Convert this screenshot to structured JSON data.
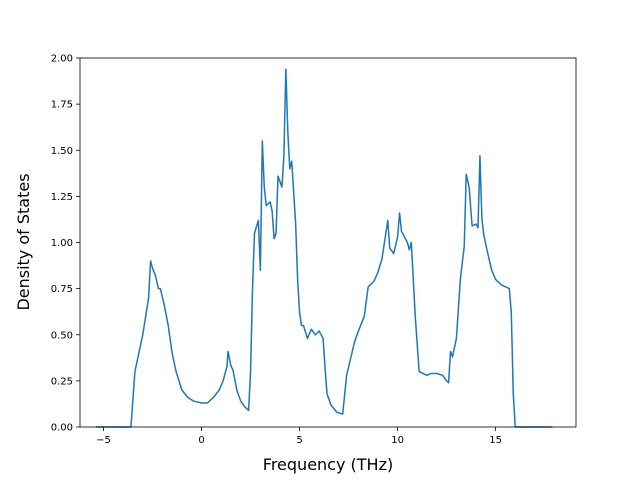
{
  "chart_data": {
    "type": "line",
    "title": "",
    "xlabel": "Frequency (THz)",
    "ylabel": "Density of States",
    "xlim": [
      -6.2,
      19.1
    ],
    "ylim": [
      0.0,
      2.0
    ],
    "grid": false,
    "line_color": "#1f77b4",
    "x_ticks": [
      -5,
      0,
      5,
      10,
      15
    ],
    "x_tick_labels": [
      "−5",
      "0",
      "5",
      "10",
      "15"
    ],
    "y_ticks": [
      0.0,
      0.25,
      0.5,
      0.75,
      1.0,
      1.25,
      1.5,
      1.75,
      2.0
    ],
    "y_tick_labels": [
      "0.00",
      "0.25",
      "0.50",
      "0.75",
      "1.00",
      "1.25",
      "1.50",
      "1.75",
      "2.00"
    ],
    "series": [
      {
        "x": [
          -5.4,
          -3.6,
          -3.4,
          -3.0,
          -2.7,
          -2.6,
          -2.5,
          -2.35,
          -2.2,
          -2.1,
          -1.9,
          -1.7,
          -1.5,
          -1.3,
          -1.0,
          -0.7,
          -0.4,
          0.0,
          0.3,
          0.6,
          0.9,
          1.1,
          1.3,
          1.35,
          1.5,
          1.6,
          1.8,
          2.0,
          2.2,
          2.4,
          2.5,
          2.6,
          2.7,
          2.9,
          3.0,
          3.1,
          3.2,
          3.3,
          3.5,
          3.6,
          3.7,
          3.8,
          3.9,
          4.1,
          4.2,
          4.3,
          4.4,
          4.5,
          4.6,
          4.7,
          4.8,
          4.9,
          5.0,
          5.1,
          5.2,
          5.4,
          5.6,
          5.8,
          6.0,
          6.2,
          6.3,
          6.4,
          6.6,
          6.9,
          7.2,
          7.4,
          7.6,
          7.8,
          8.0,
          8.3,
          8.5,
          8.8,
          9.0,
          9.2,
          9.5,
          9.6,
          9.8,
          10.0,
          10.1,
          10.2,
          10.5,
          10.6,
          10.7,
          10.9,
          11.1,
          11.5,
          11.7,
          12.0,
          12.3,
          12.5,
          12.6,
          12.7,
          12.8,
          13.0,
          13.2,
          13.4,
          13.5,
          13.65,
          13.8,
          14.0,
          14.1,
          14.2,
          14.3,
          14.4,
          14.6,
          14.8,
          15.0,
          15.3,
          15.7,
          15.8,
          15.9,
          16.0,
          16.1,
          17.9
        ],
        "y": [
          0.0,
          0.0,
          0.3,
          0.5,
          0.7,
          0.9,
          0.86,
          0.82,
          0.75,
          0.75,
          0.66,
          0.55,
          0.4,
          0.3,
          0.2,
          0.16,
          0.14,
          0.13,
          0.13,
          0.16,
          0.2,
          0.25,
          0.33,
          0.41,
          0.33,
          0.31,
          0.2,
          0.14,
          0.11,
          0.09,
          0.3,
          0.75,
          1.05,
          1.12,
          0.85,
          1.55,
          1.3,
          1.2,
          1.22,
          1.17,
          1.02,
          1.05,
          1.36,
          1.3,
          1.47,
          1.94,
          1.6,
          1.4,
          1.44,
          1.27,
          1.1,
          0.8,
          0.62,
          0.55,
          0.55,
          0.48,
          0.53,
          0.5,
          0.52,
          0.48,
          0.32,
          0.18,
          0.12,
          0.08,
          0.07,
          0.28,
          0.37,
          0.46,
          0.52,
          0.6,
          0.76,
          0.79,
          0.84,
          0.91,
          1.12,
          0.97,
          0.94,
          1.03,
          1.16,
          1.06,
          1.0,
          0.96,
          1.0,
          0.6,
          0.3,
          0.28,
          0.29,
          0.29,
          0.28,
          0.25,
          0.24,
          0.41,
          0.38,
          0.48,
          0.8,
          0.98,
          1.37,
          1.3,
          1.09,
          1.1,
          1.08,
          1.47,
          1.13,
          1.04,
          0.94,
          0.85,
          0.8,
          0.77,
          0.75,
          0.62,
          0.18,
          0.0,
          0.0,
          0.0
        ]
      }
    ]
  }
}
